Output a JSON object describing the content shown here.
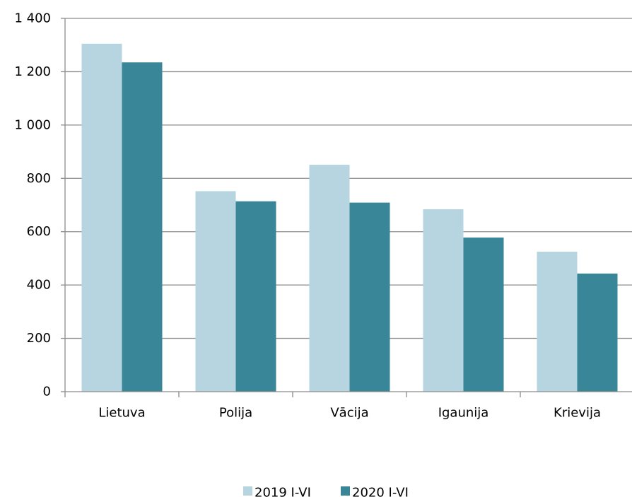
{
  "chart_data": {
    "type": "bar",
    "categories": [
      "Lietuva",
      "Polija",
      "Vācija",
      "Igaunija",
      "Krievija"
    ],
    "series": [
      {
        "name": "2019 I-VI",
        "values": [
          1305,
          752,
          851,
          684,
          525
        ],
        "color": "#b6d5e0"
      },
      {
        "name": "2020 I-VI",
        "values": [
          1235,
          714,
          709,
          578,
          443
        ],
        "color": "#3a8699"
      }
    ],
    "y_ticks": [
      "0",
      "200",
      "400",
      "600",
      "800",
      "1 000",
      "1 200",
      "1 400"
    ],
    "ylim": [
      0,
      1400
    ],
    "grid": true,
    "legend_position": "bottom-center",
    "title": "",
    "xlabel": "",
    "ylabel": ""
  }
}
